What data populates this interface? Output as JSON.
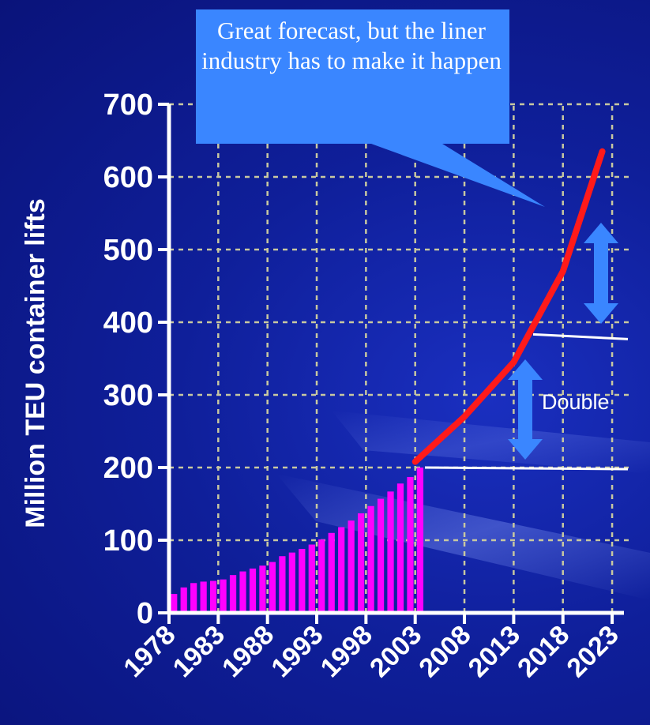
{
  "chart_data": {
    "type": "bar",
    "ylabel": "Million TEU container lifts",
    "ylim": [
      0,
      700
    ],
    "yticks": [
      0,
      100,
      200,
      300,
      400,
      500,
      600,
      700
    ],
    "xlim": [
      1978,
      2025
    ],
    "xticks": [
      "1978",
      "1983",
      "1988",
      "1993",
      "1998",
      "2003",
      "2008",
      "2013",
      "2018",
      "2023"
    ],
    "grid": true,
    "series": [
      {
        "kind": "bar",
        "color": "#ff00ff",
        "x": [
          1978,
          1979,
          1980,
          1981,
          1982,
          1983,
          1984,
          1985,
          1986,
          1987,
          1988,
          1989,
          1990,
          1991,
          1992,
          1993,
          1994,
          1995,
          1996,
          1997,
          1998,
          1999,
          2000,
          2001,
          2002,
          2003
        ],
        "values": [
          26,
          35,
          41,
          43,
          44,
          46,
          52,
          57,
          61,
          65,
          70,
          78,
          83,
          88,
          94,
          101,
          110,
          118,
          127,
          137,
          147,
          157,
          167,
          178,
          187,
          200
        ]
      },
      {
        "kind": "line",
        "color": "#ff1a1a",
        "x": [
          2003,
          2008,
          2013,
          2018,
          2022
        ],
        "values": [
          208,
          270,
          345,
          470,
          635
        ]
      }
    ],
    "annotations": {
      "callout": "Great forecast, but the liner industry has to make it happen",
      "double_label": "Double",
      "reference_lines": [
        200,
        380
      ]
    }
  },
  "colors": {
    "callout_bg": "#3a86ff",
    "arrow": "#3a86ff",
    "axis": "#ffffff",
    "grid": "#c8c8a0"
  }
}
